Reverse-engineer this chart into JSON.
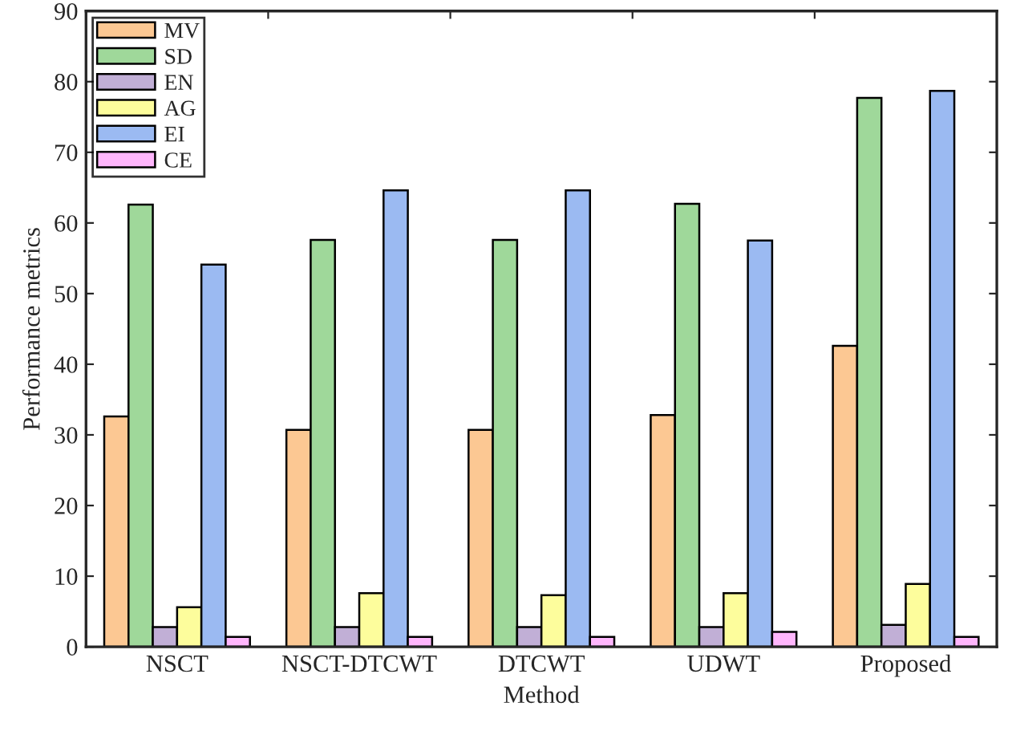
{
  "chart_data": {
    "type": "bar",
    "xlabel": "Method",
    "ylabel": "Performance metrics",
    "categories": [
      "NSCT",
      "NSCT-DTCWT",
      "DTCWT",
      "UDWT",
      "Proposed"
    ],
    "series": [
      {
        "name": "MV",
        "color": "#fcc893",
        "values": [
          32.6,
          30.7,
          30.7,
          32.8,
          42.6
        ]
      },
      {
        "name": "SD",
        "color": "#9fd89a",
        "values": [
          62.6,
          57.6,
          57.6,
          62.7,
          77.7
        ]
      },
      {
        "name": "EN",
        "color": "#c1afd6",
        "values": [
          2.8,
          2.8,
          2.8,
          2.8,
          3.1
        ]
      },
      {
        "name": "AG",
        "color": "#fdfd9c",
        "values": [
          5.6,
          7.6,
          7.3,
          7.6,
          8.9
        ]
      },
      {
        "name": "EI",
        "color": "#9bbaf2",
        "values": [
          54.1,
          64.6,
          64.6,
          57.5,
          78.7
        ]
      },
      {
        "name": "CE",
        "color": "#ffb6fc",
        "values": [
          1.4,
          1.4,
          1.4,
          2.1,
          1.4
        ]
      }
    ],
    "ylim": [
      0,
      90
    ],
    "yticks": [
      0,
      10,
      20,
      30,
      40,
      50,
      60,
      70,
      80,
      90
    ],
    "grid": false,
    "legend": "top left"
  }
}
